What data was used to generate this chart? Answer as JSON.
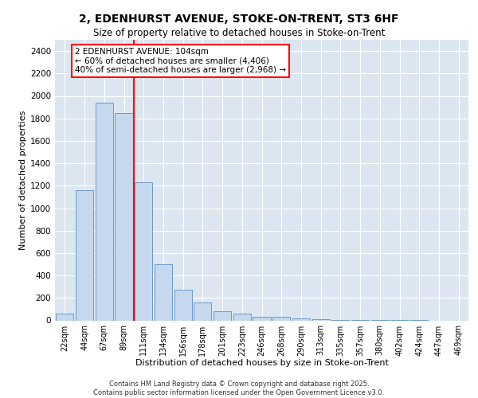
{
  "title1": "2, EDENHURST AVENUE, STOKE-ON-TRENT, ST3 6HF",
  "title2": "Size of property relative to detached houses in Stoke-on-Trent",
  "xlabel": "Distribution of detached houses by size in Stoke-on-Trent",
  "ylabel": "Number of detached properties",
  "categories": [
    "22sqm",
    "44sqm",
    "67sqm",
    "89sqm",
    "111sqm",
    "134sqm",
    "156sqm",
    "178sqm",
    "201sqm",
    "223sqm",
    "246sqm",
    "268sqm",
    "290sqm",
    "313sqm",
    "335sqm",
    "357sqm",
    "380sqm",
    "402sqm",
    "424sqm",
    "447sqm",
    "469sqm"
  ],
  "values": [
    60,
    1160,
    1940,
    1850,
    1230,
    500,
    270,
    160,
    80,
    60,
    30,
    30,
    20,
    10,
    5,
    3,
    2,
    1,
    1,
    0,
    0
  ],
  "bar_color": "#c5d8ed",
  "bar_edge_color": "#5b8fc7",
  "bg_color": "#dce6f1",
  "grid_color": "#ffffff",
  "vline_x": 3.5,
  "vline_color": "red",
  "annotation_text": "2 EDENHURST AVENUE: 104sqm\n← 60% of detached houses are smaller (4,406)\n40% of semi-detached houses are larger (2,968) →",
  "annotation_box_color": "white",
  "annotation_box_edge": "red",
  "ylim": [
    0,
    2500
  ],
  "yticks": [
    0,
    200,
    400,
    600,
    800,
    1000,
    1200,
    1400,
    1600,
    1800,
    2000,
    2200,
    2400
  ],
  "footer1": "Contains HM Land Registry data © Crown copyright and database right 2025.",
  "footer2": "Contains public sector information licensed under the Open Government Licence v3.0."
}
